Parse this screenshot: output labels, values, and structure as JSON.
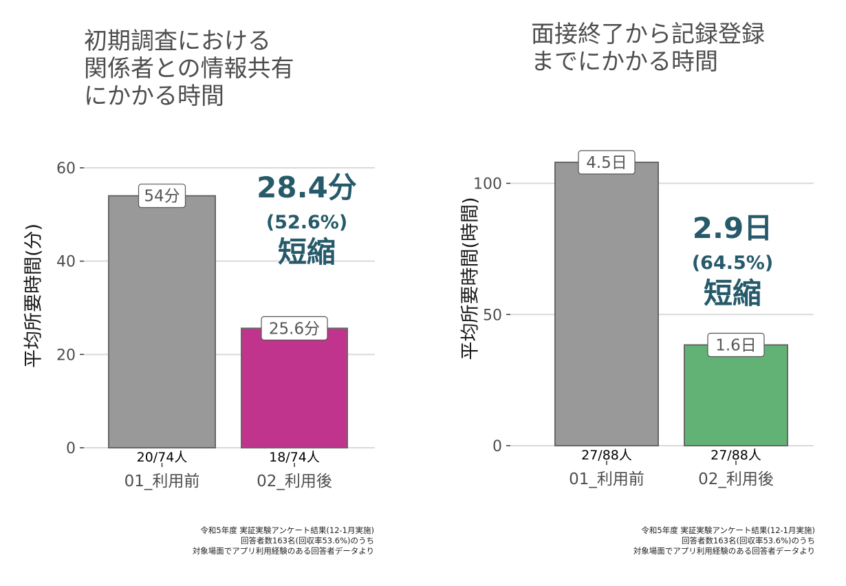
{
  "chart_data": [
    {
      "type": "bar",
      "title": "初期調査における\n関係者との情報共有\nにかかる時間",
      "ylabel": "平均所要時間(分)",
      "ylim": [
        0,
        60
      ],
      "yticks": [
        0,
        20,
        40,
        60
      ],
      "categories": [
        "01_利用前",
        "02_利用後"
      ],
      "values": [
        54,
        25.6
      ],
      "value_labels": [
        "54分",
        "25.6分"
      ],
      "count_labels": [
        "20/74人",
        "18/74人"
      ],
      "colors": [
        "#999999",
        "#c0348d"
      ],
      "grid": true,
      "annotation": {
        "main": "28.4分",
        "percent": "(52.6%)",
        "word": "短縮",
        "color": "#265a6b"
      },
      "footnote": [
        "令和5年度 実証実験アンケート結果(12-1月実施)",
        "回答者数163名(回収率53.6%)のうち",
        "対象場面でアプリ利用経験のある回答者データより"
      ]
    },
    {
      "type": "bar",
      "title": "面接終了から記録登録\nまでにかかる時間",
      "ylabel": "平均所要時間(時間)",
      "ylim": [
        0,
        108
      ],
      "yticks": [
        0,
        50,
        100
      ],
      "categories": [
        "01_利用前",
        "02_利用後"
      ],
      "values": [
        108,
        38.4
      ],
      "value_labels": [
        "4.5日",
        "1.6日"
      ],
      "count_labels": [
        "27/88人",
        "27/88人"
      ],
      "colors": [
        "#999999",
        "#62b276"
      ],
      "grid": true,
      "annotation": {
        "main": "2.9日",
        "percent": "(64.5%)",
        "word": "短縮",
        "color": "#265a6b"
      },
      "footnote": [
        "令和5年度 実証実験アンケート結果(12-1月実施)",
        "回答者数163名(回収率53.6%)のうち",
        "対象場面でアプリ利用経験のある回答者データより"
      ]
    }
  ]
}
